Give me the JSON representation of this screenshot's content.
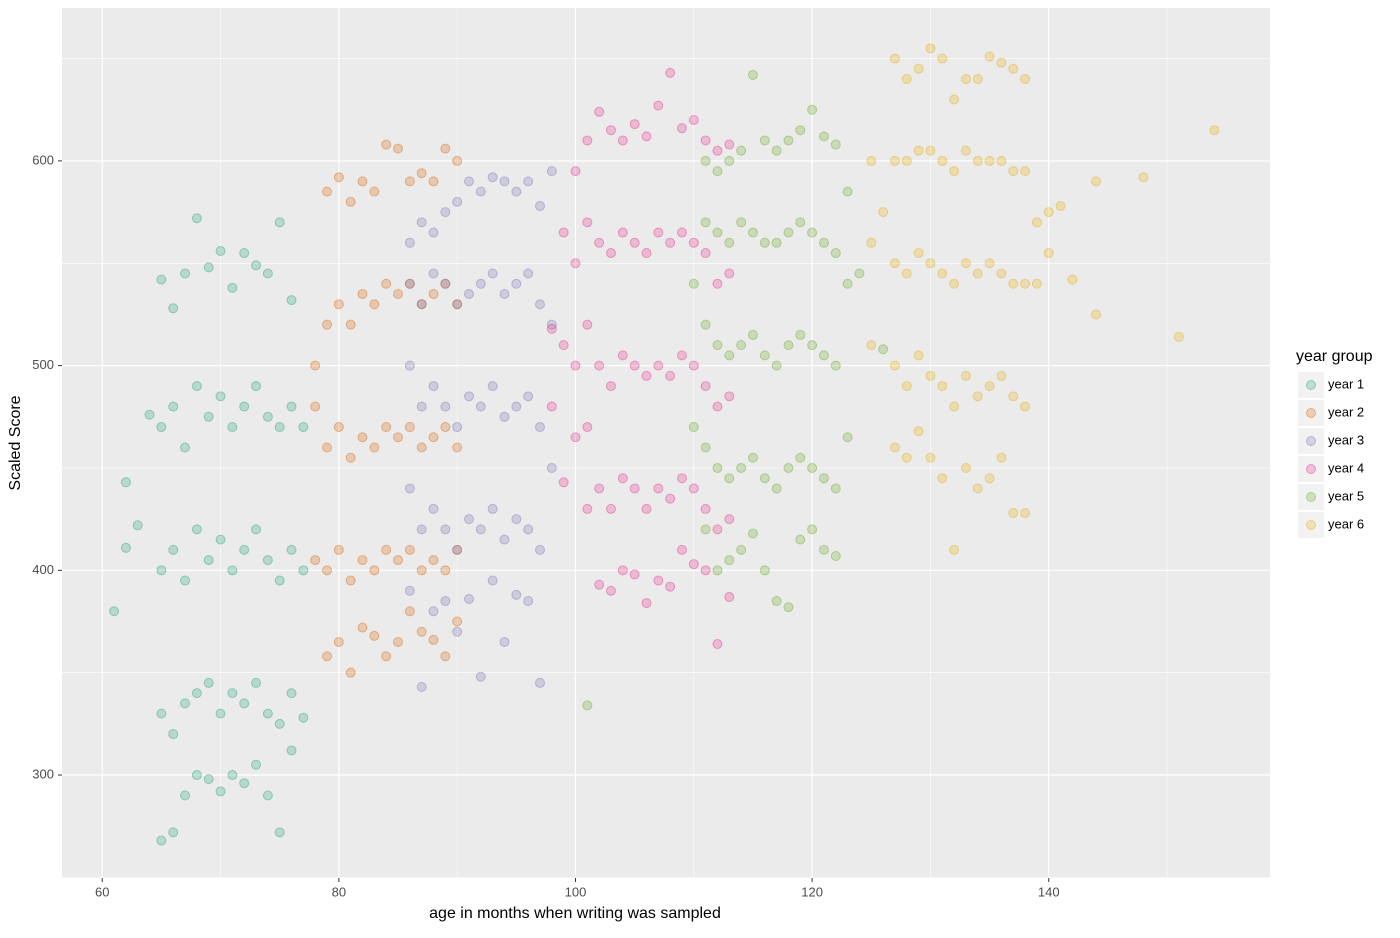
{
  "chart_data": {
    "type": "scatter",
    "xlabel": "age in months when writing was sampled",
    "ylabel": "Scaled Score",
    "legend_title": "year group",
    "legend_position": "right",
    "xlim": [
      56.6,
      158.7
    ],
    "xticks": [
      60,
      80,
      100,
      120,
      140
    ],
    "ylim": [
      249.7,
      674.7
    ],
    "yticks": [
      300,
      400,
      500,
      600
    ],
    "grid": true,
    "minor_grid": true,
    "opacity": 0.25,
    "series": [
      {
        "name": "year 1",
        "color": "#1b9e77",
        "x": [
          61,
          62,
          62,
          63,
          64,
          65,
          65,
          65,
          65,
          65,
          66,
          66,
          66,
          66,
          66,
          67,
          67,
          67,
          67,
          67,
          68,
          68,
          68,
          68,
          68,
          69,
          69,
          69,
          69,
          69,
          70,
          70,
          70,
          70,
          70,
          71,
          71,
          71,
          71,
          71,
          72,
          72,
          72,
          72,
          72,
          73,
          73,
          73,
          73,
          73,
          74,
          74,
          74,
          74,
          74,
          75,
          75,
          75,
          75,
          75,
          76,
          76,
          76,
          76,
          76,
          77,
          77,
          77
        ],
        "values": [
          380,
          443,
          411,
          422,
          476,
          268,
          330,
          400,
          470,
          542,
          272,
          320,
          410,
          480,
          528,
          290,
          335,
          395,
          460,
          545,
          300,
          340,
          420,
          490,
          572,
          298,
          345,
          405,
          475,
          548,
          292,
          330,
          415,
          485,
          556,
          300,
          340,
          400,
          470,
          538,
          296,
          335,
          410,
          480,
          555,
          305,
          345,
          420,
          490,
          549,
          290,
          330,
          405,
          475,
          545,
          272,
          325,
          395,
          470,
          570,
          312,
          340,
          410,
          480,
          532,
          328,
          400,
          470
        ]
      },
      {
        "name": "year 2",
        "color": "#d95f02",
        "x": [
          78,
          78,
          78,
          79,
          79,
          79,
          79,
          79,
          80,
          80,
          80,
          80,
          80,
          81,
          81,
          81,
          81,
          81,
          82,
          82,
          82,
          82,
          82,
          83,
          83,
          83,
          83,
          83,
          84,
          84,
          84,
          84,
          84,
          85,
          85,
          85,
          85,
          85,
          86,
          86,
          86,
          86,
          86,
          87,
          87,
          87,
          87,
          87,
          88,
          88,
          88,
          88,
          88,
          89,
          89,
          89,
          89,
          89,
          90,
          90,
          90,
          90,
          90
        ],
        "values": [
          405,
          480,
          500,
          358,
          400,
          460,
          520,
          585,
          365,
          410,
          470,
          530,
          592,
          350,
          395,
          455,
          520,
          580,
          372,
          405,
          465,
          535,
          590,
          368,
          400,
          460,
          530,
          585,
          358,
          410,
          470,
          540,
          608,
          365,
          405,
          465,
          535,
          606,
          380,
          410,
          470,
          540,
          590,
          370,
          400,
          460,
          530,
          594,
          366,
          405,
          465,
          535,
          590,
          358,
          400,
          470,
          540,
          606,
          375,
          410,
          460,
          530,
          600
        ]
      },
      {
        "name": "year 3",
        "color": "#7570b3",
        "x": [
          86,
          86,
          86,
          86,
          86,
          87,
          87,
          87,
          87,
          87,
          88,
          88,
          88,
          88,
          88,
          89,
          89,
          89,
          89,
          89,
          90,
          90,
          90,
          90,
          90,
          91,
          91,
          91,
          91,
          91,
          92,
          92,
          92,
          92,
          92,
          93,
          93,
          93,
          93,
          93,
          94,
          94,
          94,
          94,
          94,
          95,
          95,
          95,
          95,
          95,
          96,
          96,
          96,
          96,
          96,
          97,
          97,
          97,
          97,
          97,
          98,
          98,
          98
        ],
        "values": [
          390,
          440,
          500,
          540,
          560,
          343,
          420,
          480,
          530,
          570,
          380,
          430,
          490,
          545,
          565,
          385,
          420,
          480,
          540,
          575,
          370,
          410,
          470,
          530,
          580,
          386,
          425,
          485,
          535,
          590,
          348,
          420,
          480,
          540,
          585,
          395,
          430,
          490,
          545,
          592,
          365,
          415,
          475,
          535,
          590,
          388,
          425,
          480,
          540,
          585,
          385,
          420,
          485,
          545,
          590,
          345,
          410,
          470,
          530,
          578,
          450,
          520,
          595
        ]
      },
      {
        "name": "year 4",
        "color": "#e7298a",
        "x": [
          98,
          98,
          99,
          99,
          99,
          100,
          100,
          100,
          100,
          101,
          101,
          101,
          101,
          101,
          102,
          102,
          102,
          102,
          102,
          103,
          103,
          103,
          103,
          103,
          104,
          104,
          104,
          104,
          104,
          105,
          105,
          105,
          105,
          105,
          106,
          106,
          106,
          106,
          106,
          107,
          107,
          107,
          107,
          107,
          108,
          108,
          108,
          108,
          108,
          109,
          109,
          109,
          109,
          109,
          110,
          110,
          110,
          110,
          110,
          111,
          111,
          111,
          111,
          111,
          112,
          112,
          112,
          112,
          112,
          113,
          113,
          113,
          113,
          113
        ],
        "values": [
          480,
          518,
          443,
          510,
          565,
          465,
          500,
          550,
          595,
          430,
          470,
          520,
          570,
          610,
          393,
          440,
          500,
          560,
          624,
          390,
          430,
          490,
          555,
          615,
          400,
          445,
          505,
          565,
          610,
          398,
          440,
          500,
          560,
          618,
          384,
          430,
          495,
          555,
          612,
          395,
          440,
          500,
          565,
          627,
          392,
          435,
          495,
          560,
          643,
          410,
          445,
          505,
          565,
          616,
          403,
          440,
          500,
          560,
          620,
          400,
          430,
          490,
          555,
          610,
          364,
          420,
          480,
          540,
          605,
          387,
          425,
          485,
          545,
          608
        ]
      },
      {
        "name": "year 5",
        "color": "#66a61e",
        "x": [
          101,
          110,
          110,
          111,
          111,
          111,
          111,
          111,
          112,
          112,
          112,
          112,
          112,
          113,
          113,
          113,
          113,
          113,
          114,
          114,
          114,
          114,
          114,
          115,
          115,
          115,
          115,
          115,
          116,
          116,
          116,
          116,
          116,
          117,
          117,
          117,
          117,
          117,
          118,
          118,
          118,
          118,
          118,
          119,
          119,
          119,
          119,
          119,
          120,
          120,
          120,
          120,
          120,
          121,
          121,
          121,
          121,
          121,
          122,
          122,
          122,
          122,
          122,
          123,
          123,
          123,
          124,
          126
        ],
        "values": [
          334,
          470,
          540,
          420,
          460,
          520,
          570,
          600,
          400,
          450,
          510,
          565,
          595,
          405,
          445,
          505,
          560,
          600,
          410,
          450,
          510,
          570,
          605,
          418,
          455,
          515,
          565,
          642,
          400,
          445,
          505,
          560,
          610,
          385,
          440,
          500,
          560,
          605,
          382,
          450,
          510,
          565,
          610,
          415,
          455,
          515,
          570,
          615,
          420,
          450,
          510,
          565,
          625,
          410,
          445,
          505,
          560,
          612,
          407,
          440,
          500,
          555,
          608,
          465,
          540,
          585,
          545,
          508
        ]
      },
      {
        "name": "year 6",
        "color": "#e6ab02",
        "x": [
          125,
          125,
          125,
          126,
          127,
          127,
          127,
          127,
          127,
          128,
          128,
          128,
          128,
          128,
          129,
          129,
          129,
          129,
          129,
          130,
          130,
          130,
          130,
          130,
          131,
          131,
          131,
          131,
          131,
          132,
          132,
          132,
          132,
          132,
          133,
          133,
          133,
          133,
          133,
          134,
          134,
          134,
          134,
          134,
          135,
          135,
          135,
          135,
          135,
          136,
          136,
          136,
          136,
          136,
          137,
          137,
          137,
          137,
          137,
          138,
          138,
          138,
          138,
          138,
          139,
          139,
          140,
          140,
          141,
          142,
          144,
          144,
          148,
          151,
          154
        ],
        "values": [
          510,
          560,
          600,
          575,
          460,
          500,
          550,
          600,
          650,
          455,
          490,
          545,
          600,
          640,
          468,
          505,
          555,
          605,
          645,
          455,
          495,
          550,
          605,
          655,
          445,
          490,
          545,
          600,
          650,
          410,
          480,
          540,
          595,
          630,
          450,
          495,
          550,
          605,
          640,
          440,
          485,
          545,
          600,
          640,
          445,
          490,
          550,
          600,
          651,
          455,
          495,
          545,
          600,
          648,
          428,
          485,
          540,
          595,
          645,
          428,
          480,
          540,
          595,
          640,
          570,
          540,
          555,
          575,
          578,
          542,
          525,
          590,
          592,
          514,
          615
        ]
      }
    ]
  }
}
